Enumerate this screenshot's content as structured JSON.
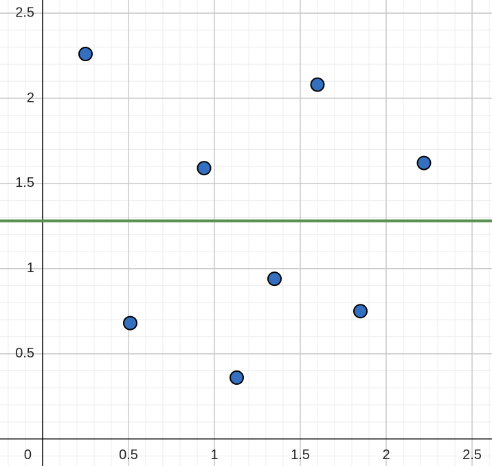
{
  "chart_data": {
    "type": "scatter",
    "x": [
      0.25,
      0.51,
      0.94,
      1.13,
      1.35,
      1.6,
      1.85,
      2.22
    ],
    "values": [
      2.26,
      0.68,
      1.59,
      0.36,
      0.94,
      2.08,
      0.75,
      1.62
    ],
    "color": "#3570c0",
    "hline": {
      "value": 1.28,
      "color": "#5b9151"
    },
    "xlim": [
      -0.248,
      2.616
    ],
    "ylim": [
      -0.159,
      2.577
    ],
    "xticks": [
      0,
      0.5,
      1,
      1.5,
      2,
      2.5
    ],
    "yticks": [
      0.5,
      1,
      1.5,
      2,
      2.5
    ],
    "grid": true,
    "minor_grid": true
  }
}
